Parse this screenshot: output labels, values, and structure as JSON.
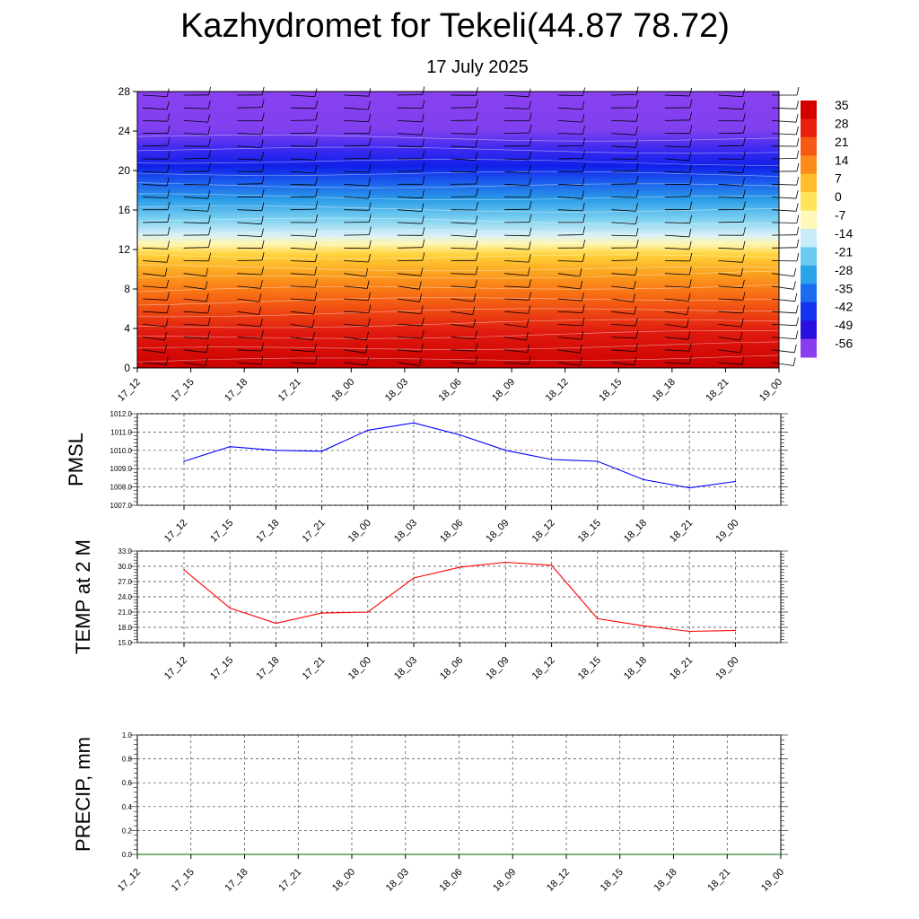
{
  "header": {
    "title": "Kazhydromet for Tekeli(44.87 78.72)",
    "subtitle": "17 July 2025"
  },
  "colors": {
    "pmsl_line": "#0000ff",
    "temp_line": "#ff0000",
    "precip_line": "#006400",
    "grid": "#444444",
    "wind_barb": "#000000",
    "contour": "#ffffff"
  },
  "chart_data": [
    {
      "type": "heatmap",
      "name": "temperature-height-section",
      "title": "",
      "xlabel": "",
      "ylabel": "",
      "x_ticks": [
        "17_12",
        "17_15",
        "17_18",
        "17_21",
        "18_00",
        "18_03",
        "18_06",
        "18_09",
        "18_12",
        "18_15",
        "18_18",
        "18_21",
        "19_00"
      ],
      "y_ticks": [
        0,
        4,
        8,
        12,
        16,
        20,
        24,
        28
      ],
      "ylim": [
        0,
        28
      ],
      "colorbar": {
        "labels": [
          "35",
          "28",
          "21",
          "14",
          "7",
          "0",
          "-7",
          "-14",
          "-21",
          "-28",
          "-35",
          "-42",
          "-49",
          "-56"
        ],
        "colors": [
          "#d40000",
          "#e82010",
          "#f55a14",
          "#fb8c1c",
          "#ffbe2a",
          "#ffe45a",
          "#fff8b8",
          "#c8ecf8",
          "#6ccaf0",
          "#2aa4e8",
          "#1a6cf0",
          "#1432f0",
          "#2a10e0",
          "#8a3cf0"
        ]
      },
      "cold_core_height": 20.5,
      "freezing_level": 12.8,
      "overlays": [
        "wind-barbs",
        "white-contours"
      ]
    },
    {
      "type": "line",
      "name": "PMSL",
      "ylabel": "PMSL",
      "ylim": [
        1007.0,
        1012.0
      ],
      "y_ticks": [
        "1007.0",
        "1008.0",
        "1009.0",
        "1010.0",
        "1011.0",
        "1012.0"
      ],
      "categories": [
        "17_12",
        "17_15",
        "17_18",
        "17_21",
        "18_00",
        "18_03",
        "18_06",
        "18_09",
        "18_12",
        "18_15",
        "18_18",
        "18_21",
        "19_00"
      ],
      "values": [
        1009.4,
        1010.2,
        1010.0,
        1009.95,
        1011.1,
        1011.5,
        1010.85,
        1010.0,
        1009.5,
        1009.4,
        1008.4,
        1007.95,
        1008.3
      ]
    },
    {
      "type": "line",
      "name": "TEMP at 2 M",
      "ylabel": "TEMP at 2 M",
      "ylim": [
        15.0,
        33.0
      ],
      "y_ticks": [
        "15.0",
        "18.0",
        "21.0",
        "24.0",
        "27.0",
        "30.0",
        "33.0"
      ],
      "categories": [
        "17_12",
        "17_15",
        "17_18",
        "17_21",
        "18_00",
        "18_03",
        "18_06",
        "18_09",
        "18_12",
        "18_15",
        "18_18",
        "18_21",
        "19_00"
      ],
      "values": [
        29.3,
        21.8,
        18.8,
        20.8,
        21.0,
        27.7,
        29.8,
        30.8,
        30.2,
        19.7,
        18.3,
        17.2,
        17.4
      ]
    },
    {
      "type": "line",
      "name": "PRECIP, mm",
      "ylabel": "PRECIP, mm",
      "ylim": [
        0.0,
        1.0
      ],
      "y_ticks": [
        "0.0",
        "0.2",
        "0.4",
        "0.6",
        "0.8",
        "1.0"
      ],
      "categories": [
        "17_12",
        "17_15",
        "17_18",
        "17_21",
        "18_00",
        "18_03",
        "18_06",
        "18_09",
        "18_12",
        "18_15",
        "18_18",
        "18_21",
        "19_00"
      ],
      "values": [
        0,
        0,
        0,
        0,
        0,
        0,
        0,
        0,
        0,
        0,
        0,
        0,
        0
      ]
    }
  ]
}
